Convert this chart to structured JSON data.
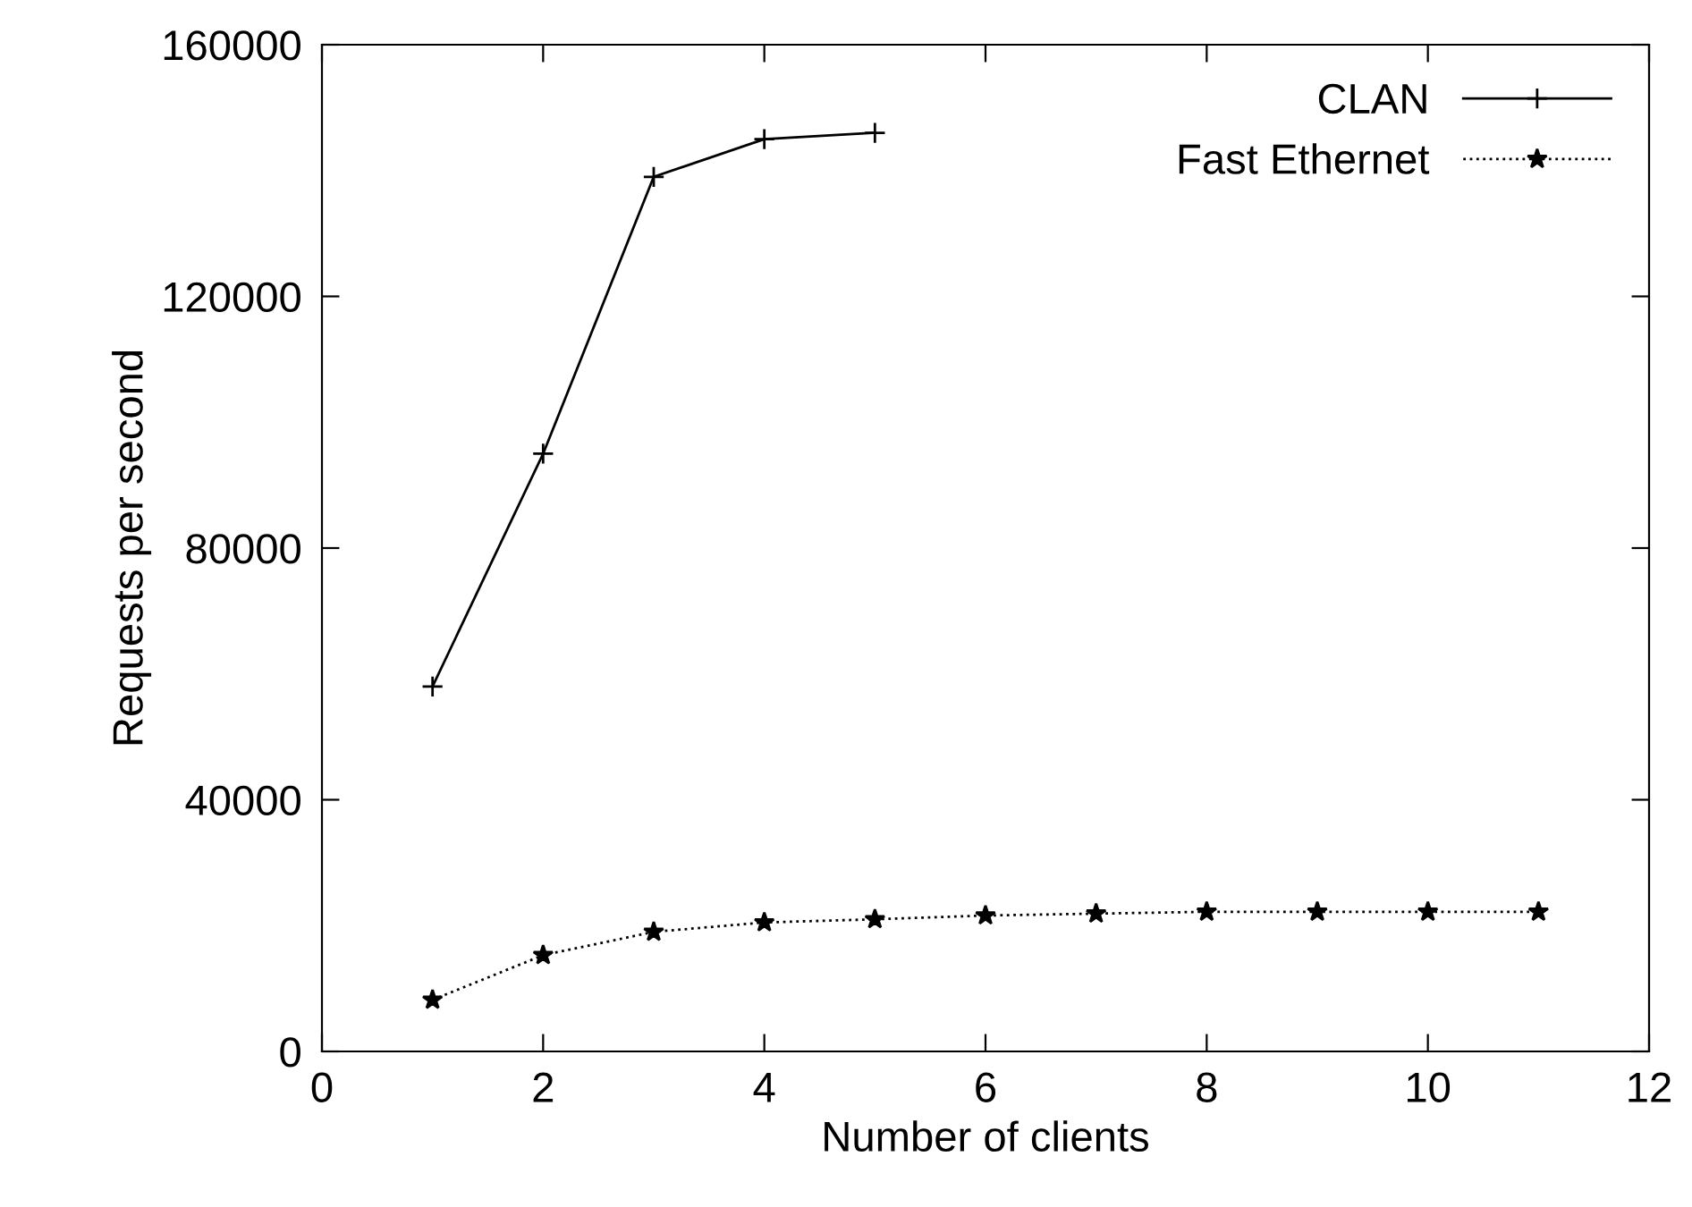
{
  "chart_data": {
    "type": "line",
    "xlabel": "Number of clients",
    "ylabel": "Requests per second",
    "xlim": [
      0,
      12
    ],
    "xticks": [
      0,
      2,
      4,
      6,
      8,
      10,
      12
    ],
    "ylim": [
      0,
      160000
    ],
    "yticks": [
      0,
      40000,
      80000,
      120000,
      160000
    ],
    "grid": false,
    "legend": "top right",
    "series": [
      {
        "name": "CLAN",
        "color": "#000000",
        "marker": "cross",
        "line_style": "solid",
        "x": [
          1,
          2,
          3,
          4,
          5
        ],
        "values": [
          58000,
          95000,
          139000,
          145000,
          146000
        ]
      },
      {
        "name": "Fast Ethernet",
        "color": "#000000",
        "marker": "star",
        "line_style": "dotted",
        "x": [
          1,
          2,
          3,
          4,
          5,
          6,
          7,
          8,
          9,
          10,
          11
        ],
        "values": [
          8200,
          15300,
          19000,
          20500,
          21000,
          21600,
          21900,
          22200,
          22200,
          22200,
          22200
        ]
      }
    ]
  }
}
